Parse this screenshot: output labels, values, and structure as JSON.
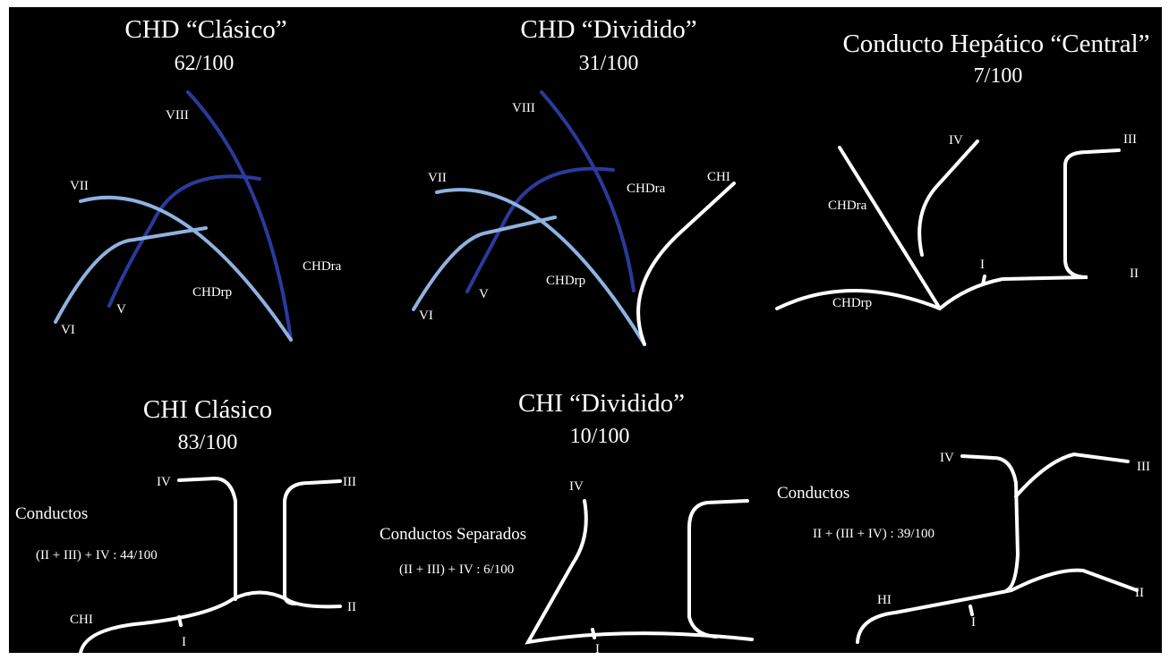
{
  "panels": [
    {
      "title": "CHD “Clásico”",
      "subtitle": "62/100",
      "labels": [
        "VIII",
        "VII",
        "VI",
        "V",
        "CHDrp",
        "CHDra"
      ]
    },
    {
      "title": "CHD “Dividido”",
      "subtitle": "31/100",
      "labels": [
        "VIII",
        "VII",
        "CHDra",
        "CHI",
        "VI",
        "V",
        "CHDrp"
      ]
    },
    {
      "title": "Conducto Hepático “Central”",
      "subtitle": "7/100",
      "labels": [
        "IV",
        "III",
        "CHDra",
        "I",
        "II",
        "CHDrp"
      ]
    },
    {
      "title": "CHI Clásico",
      "subtitle": "83/100",
      "labels": [
        "IV",
        "III",
        "Conductos",
        "(II + III) + IV : 44/100",
        "CHI",
        "I",
        "II"
      ]
    },
    {
      "title": "CHI “Dividido”",
      "subtitle": "10/100",
      "labels": [
        "IV",
        "Conductos Separados",
        "(II + III) + IV : 6/100",
        "I"
      ]
    },
    {
      "labels": [
        "IV",
        "III",
        "Conductos",
        "II + (III + IV) : 39/100",
        "HI",
        "I",
        "II"
      ]
    }
  ]
}
